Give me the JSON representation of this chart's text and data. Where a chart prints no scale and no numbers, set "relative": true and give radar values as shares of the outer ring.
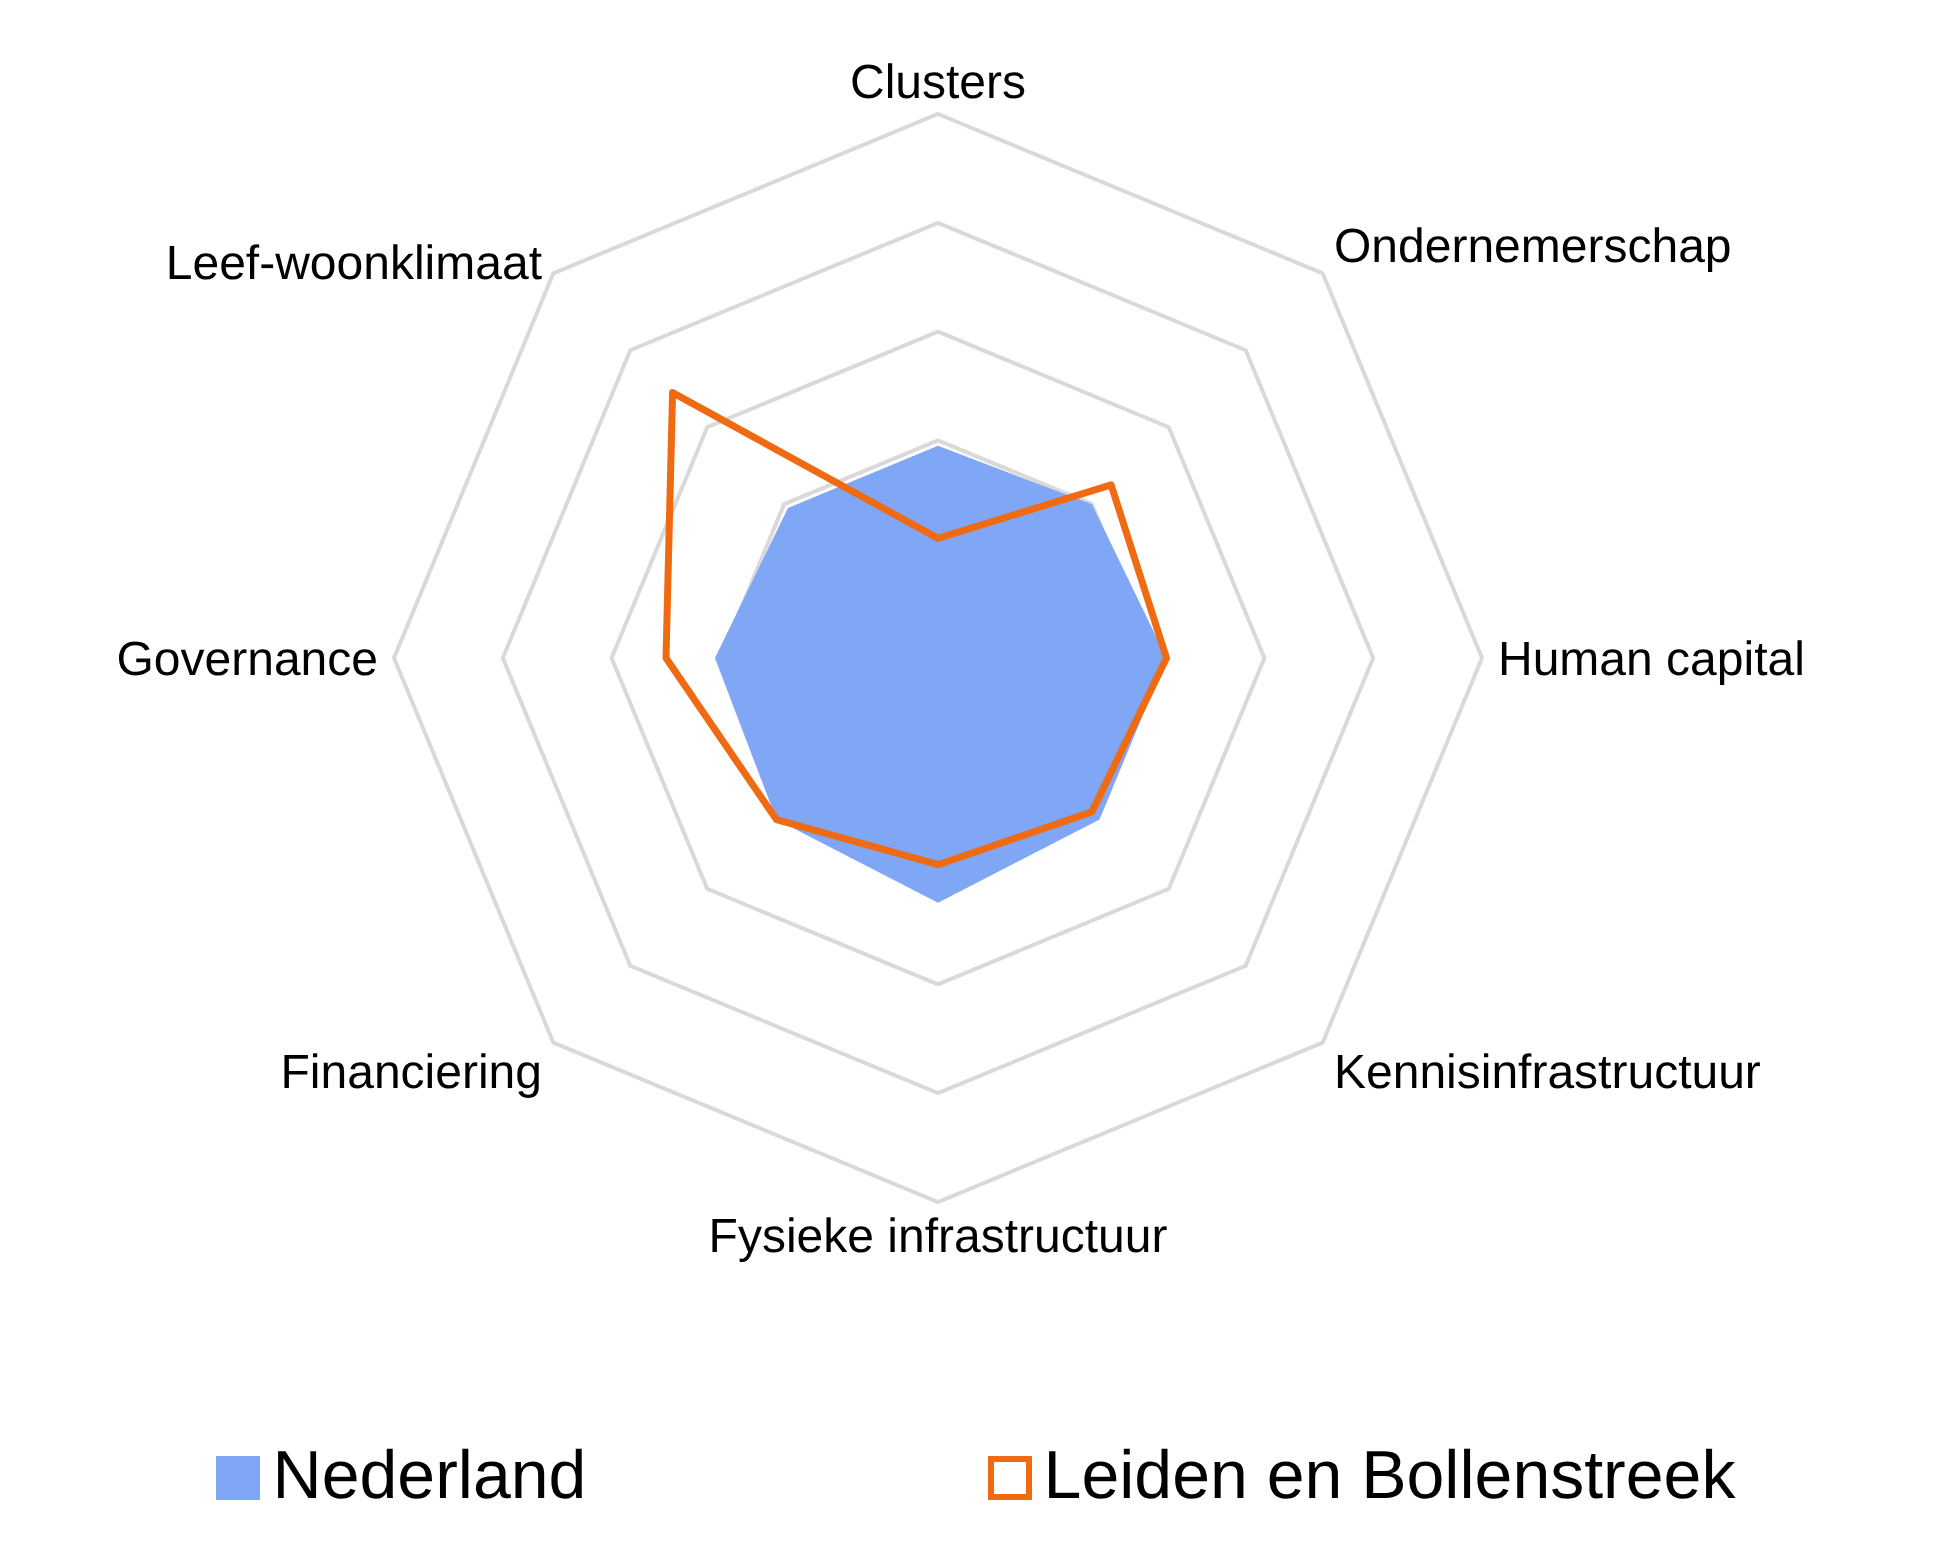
{
  "chart_data": {
    "type": "radar",
    "relative": true,
    "categories": [
      "Clusters",
      "Ondernemerschap",
      "Human capital",
      "Kennisinfrastructuur",
      "Fysieke infrastructuur",
      "Financiering",
      "Governance",
      "Leef-woonklimaat"
    ],
    "series": [
      {
        "name": "Nederland",
        "color": "#7fa7f5",
        "values": [
          0.39,
          0.4,
          0.42,
          0.42,
          0.45,
          0.42,
          0.41,
          0.39
        ]
      },
      {
        "name": "Leiden en Bollenstreek",
        "color": "#f06a12",
        "values": [
          0.22,
          0.45,
          0.42,
          0.4,
          0.38,
          0.42,
          0.5,
          0.69
        ]
      }
    ],
    "grid": true,
    "legend": "bottom"
  }
}
